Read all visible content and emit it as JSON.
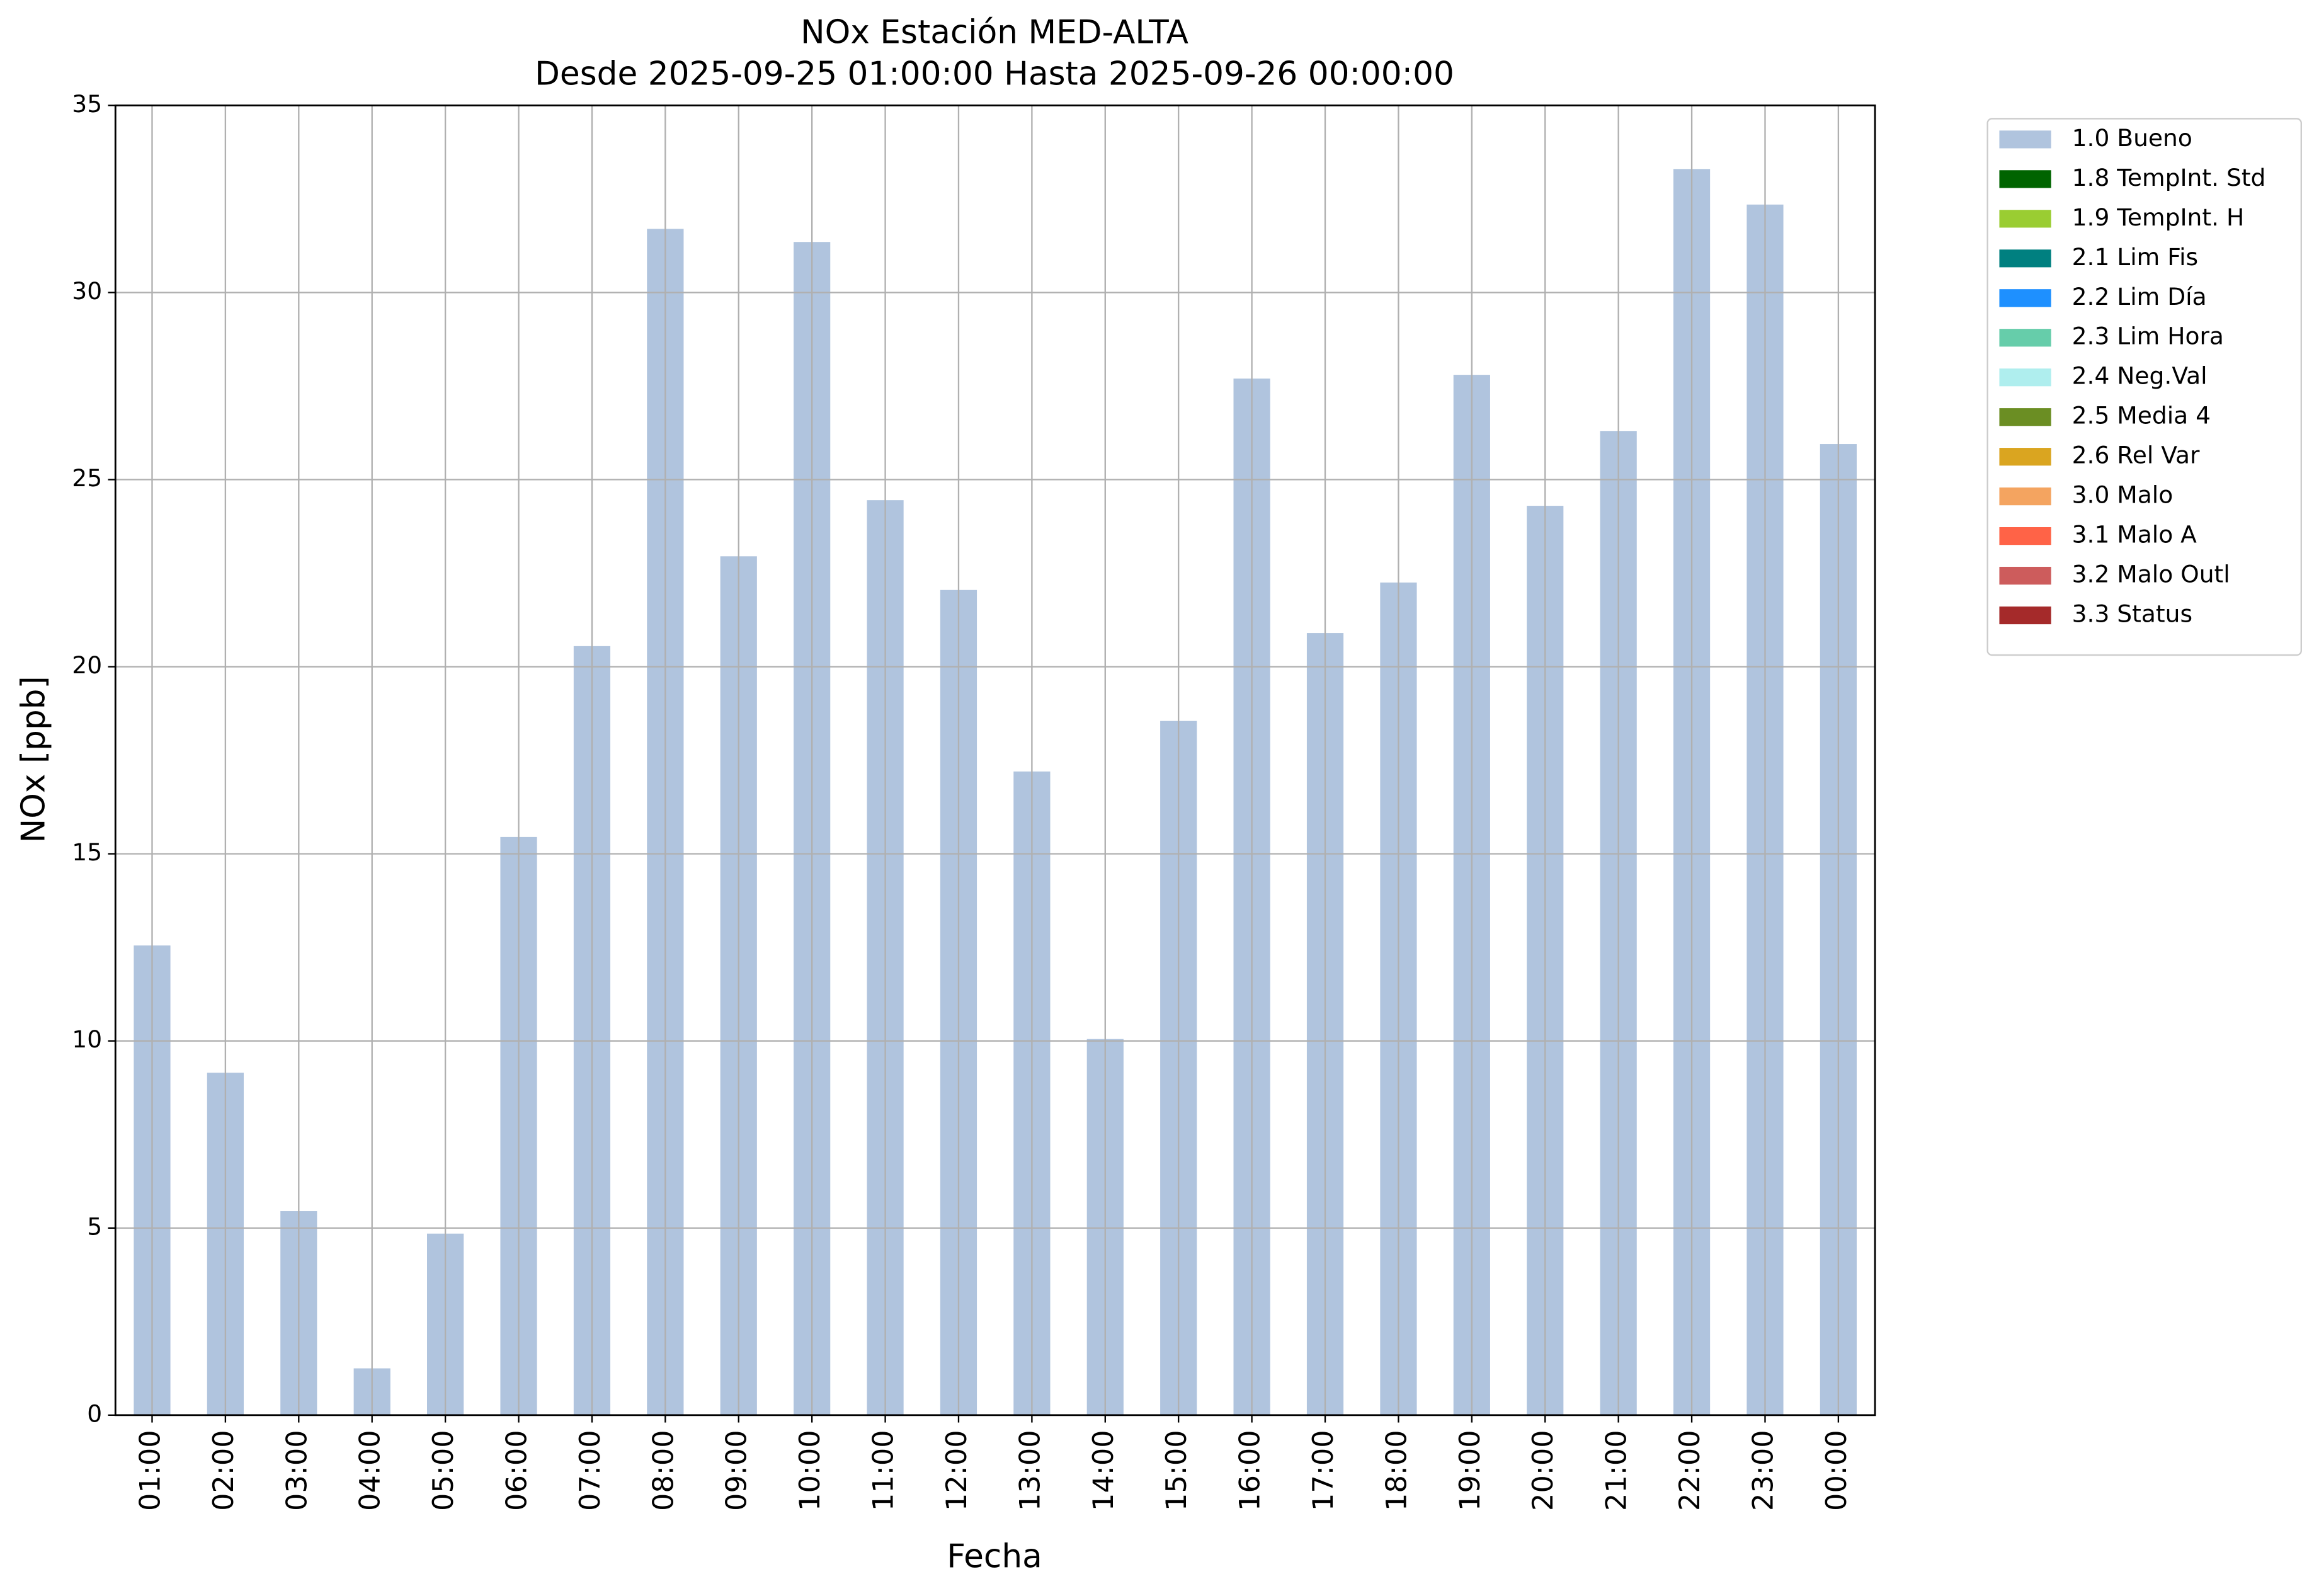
{
  "chart_data": {
    "type": "stacked-bar",
    "title": "NOx Estación MED-ALTA",
    "subtitle": "Desde 2025-09-25 01:00:00 Hasta 2025-09-26 00:00:00",
    "x_label": "Fecha",
    "y_label": "NOx [ppb]",
    "categories": [
      "01:00",
      "02:00",
      "03:00",
      "04:00",
      "05:00",
      "06:00",
      "07:00",
      "08:00",
      "09:00",
      "10:00",
      "11:00",
      "12:00",
      "13:00",
      "14:00",
      "15:00",
      "16:00",
      "17:00",
      "18:00",
      "19:00",
      "20:00",
      "21:00",
      "22:00",
      "23:00",
      "00:00"
    ],
    "series": [
      {
        "name": "1.0 Bueno",
        "color": "#b0c4de",
        "values": [
          12.55,
          9.15,
          5.45,
          1.25,
          4.85,
          15.45,
          20.55,
          31.7,
          22.95,
          31.35,
          24.45,
          22.05,
          17.2,
          10.05,
          18.55,
          27.7,
          20.9,
          22.25,
          27.8,
          24.3,
          26.3,
          33.3,
          32.35,
          25.95
        ]
      },
      {
        "name": "1.8 TempInt. Std",
        "color": "#006400",
        "values": [
          0,
          0,
          0,
          0,
          0,
          0,
          0,
          0,
          0,
          0,
          0,
          0,
          0,
          0,
          0,
          0,
          0,
          0,
          0,
          0,
          0,
          0,
          0,
          0
        ]
      },
      {
        "name": "1.9 TempInt. H",
        "color": "#9acd32",
        "values": [
          0,
          0,
          0,
          0,
          0,
          0,
          0,
          0,
          0,
          0,
          0,
          0,
          0,
          0,
          0,
          0,
          0,
          0,
          0,
          0,
          0,
          0,
          0,
          0
        ]
      },
      {
        "name": "2.1 Lim Fis",
        "color": "#008080",
        "values": [
          0,
          0,
          0,
          0,
          0,
          0,
          0,
          0,
          0,
          0,
          0,
          0,
          0,
          0,
          0,
          0,
          0,
          0,
          0,
          0,
          0,
          0,
          0,
          0
        ]
      },
      {
        "name": "2.2 Lim Día",
        "color": "#1e90ff",
        "values": [
          0,
          0,
          0,
          0,
          0,
          0,
          0,
          0,
          0,
          0,
          0,
          0,
          0,
          0,
          0,
          0,
          0,
          0,
          0,
          0,
          0,
          0,
          0,
          0
        ]
      },
      {
        "name": "2.3 Lim Hora",
        "color": "#66cdaa",
        "values": [
          0,
          0,
          0,
          0,
          0,
          0,
          0,
          0,
          0,
          0,
          0,
          0,
          0,
          0,
          0,
          0,
          0,
          0,
          0,
          0,
          0,
          0,
          0,
          0
        ]
      },
      {
        "name": "2.4 Neg.Val",
        "color": "#afeeee",
        "values": [
          0,
          0,
          0,
          0,
          0,
          0,
          0,
          0,
          0,
          0,
          0,
          0,
          0,
          0,
          0,
          0,
          0,
          0,
          0,
          0,
          0,
          0,
          0,
          0
        ]
      },
      {
        "name": "2.5 Media 4",
        "color": "#6b8e23",
        "values": [
          0,
          0,
          0,
          0,
          0,
          0,
          0,
          0,
          0,
          0,
          0,
          0,
          0,
          0,
          0,
          0,
          0,
          0,
          0,
          0,
          0,
          0,
          0,
          0
        ]
      },
      {
        "name": "2.6 Rel Var",
        "color": "#daa520",
        "values": [
          0,
          0,
          0,
          0,
          0,
          0,
          0,
          0,
          0,
          0,
          0,
          0,
          0,
          0,
          0,
          0,
          0,
          0,
          0,
          0,
          0,
          0,
          0,
          0
        ]
      },
      {
        "name": "3.0 Malo",
        "color": "#f4a460",
        "values": [
          0,
          0,
          0,
          0,
          0,
          0,
          0,
          0,
          0,
          0,
          0,
          0,
          0,
          0,
          0,
          0,
          0,
          0,
          0,
          0,
          0,
          0,
          0,
          0
        ]
      },
      {
        "name": "3.1 Malo A",
        "color": "#ff6347",
        "values": [
          0,
          0,
          0,
          0,
          0,
          0,
          0,
          0,
          0,
          0,
          0,
          0,
          0,
          0,
          0,
          0,
          0,
          0,
          0,
          0,
          0,
          0,
          0,
          0
        ]
      },
      {
        "name": "3.2 Malo Outl",
        "color": "#cd5c5c",
        "values": [
          0,
          0,
          0,
          0,
          0,
          0,
          0,
          0,
          0,
          0,
          0,
          0,
          0,
          0,
          0,
          0,
          0,
          0,
          0,
          0,
          0,
          0,
          0,
          0
        ]
      },
      {
        "name": "3.3 Status",
        "color": "#a52a2a",
        "values": [
          0,
          0,
          0,
          0,
          0,
          0,
          0,
          0,
          0,
          0,
          0,
          0,
          0,
          0,
          0,
          0,
          0,
          0,
          0,
          0,
          0,
          0,
          0,
          0
        ]
      }
    ],
    "ylim": [
      0,
      35
    ],
    "yticks": [
      0,
      5,
      10,
      15,
      20,
      25,
      30,
      35
    ],
    "grid": true,
    "legend": "outside-upper-right"
  }
}
